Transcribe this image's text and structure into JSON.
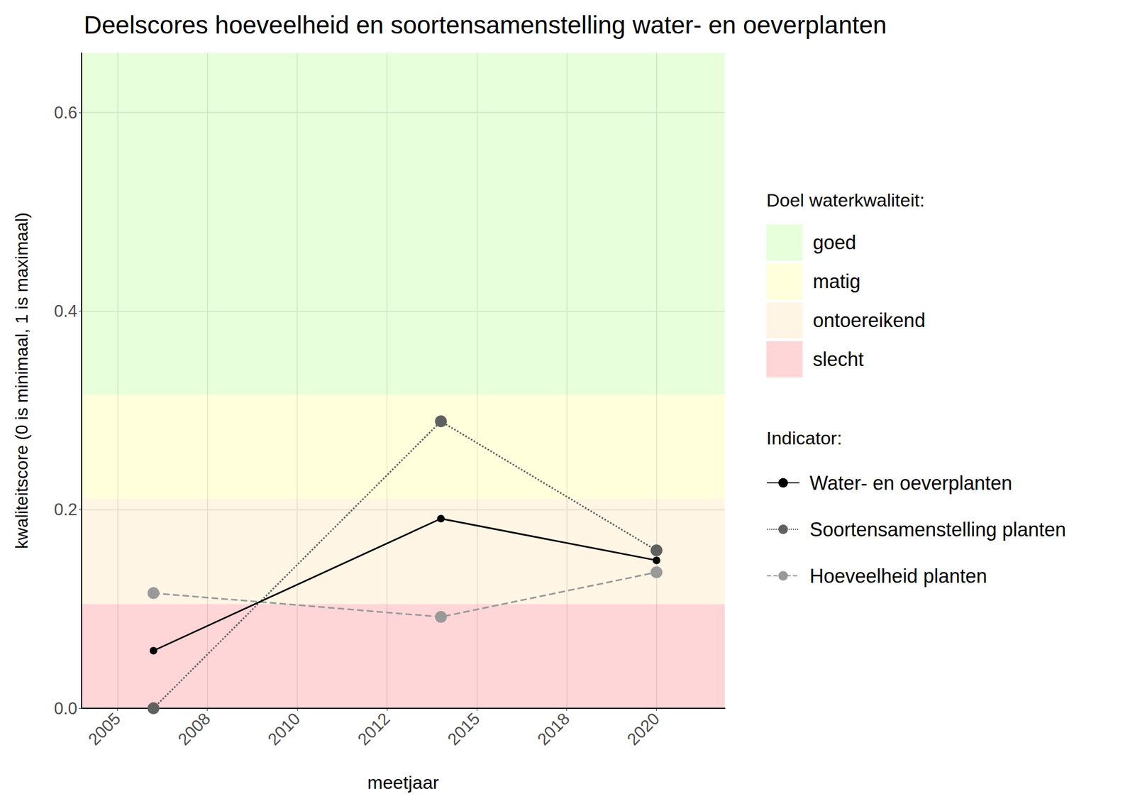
{
  "chart_data": {
    "type": "line",
    "title": "Deelscores hoeveelheid en soortensamenstelling water- en oeverplanten",
    "x_label": "meetjaar",
    "y_label": "kwaliteitscore (0 is minimaal, 1 is maximaal)",
    "x": [
      2006,
      2014,
      2020
    ],
    "series": [
      {
        "name": "Water- en oeverplanten",
        "color": "#000000",
        "line_style": "solid",
        "marker": "circle",
        "values": [
          0.058,
          0.191,
          0.149
        ]
      },
      {
        "name": "Soortensamenstelling planten",
        "color": "#606060",
        "line_style": "dotted",
        "marker": "circle",
        "values": [
          0.0,
          0.289,
          0.159
        ]
      },
      {
        "name": "Hoeveelheid planten",
        "color": "#999999",
        "line_style": "dashed",
        "marker": "circle",
        "values": [
          0.116,
          0.092,
          0.137
        ]
      }
    ],
    "xlim": [
      2004,
      2021.9
    ],
    "xticks": [
      2005,
      {
        "value": 2007.5,
        "label": "2008"
      },
      2010,
      {
        "value": 2012.5,
        "label": "2012"
      },
      2015,
      {
        "value": 2017.5,
        "label": "2018"
      },
      2020
    ],
    "ylim": [
      0,
      0.66
    ],
    "yticks": [
      {
        "value": 0,
        "label": "0.0"
      },
      0.2,
      0.4,
      0.6
    ],
    "grid": true,
    "legend": "right",
    "legend_title": "Indicator:",
    "bands_title": "Doel waterkwaliteit:",
    "bands": [
      {
        "name": "goed",
        "from": 0.316,
        "to": 0.66,
        "color": "rgba(130,255,60,0.18)"
      },
      {
        "name": "matig",
        "from": 0.211,
        "to": 0.316,
        "color": "rgba(255,255,80,0.2)"
      },
      {
        "name": "ontoereikend",
        "from": 0.105,
        "to": 0.211,
        "color": "rgba(250,190,80,0.15)"
      },
      {
        "name": "slecht",
        "from": 0,
        "to": 0.105,
        "color": "rgba(255,90,100,0.25)"
      }
    ]
  }
}
